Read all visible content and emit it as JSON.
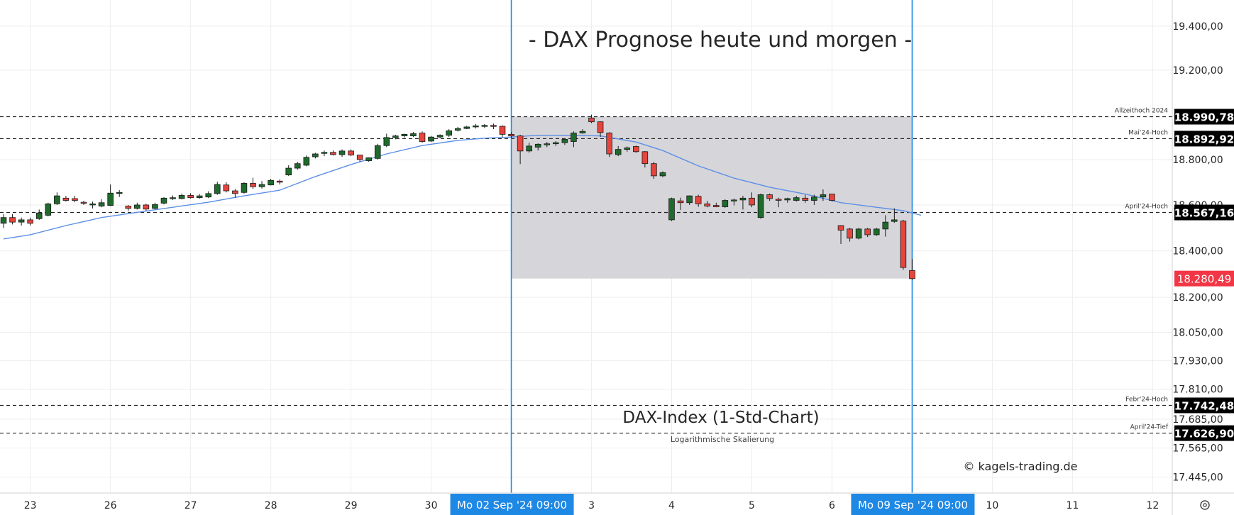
{
  "chart_data": {
    "type": "candlestick",
    "title": "- DAX Prognose heute und morgen -",
    "subtitle": "DAX-Index (1-Std-Chart)",
    "scale_note": "Logarithmische Skalierung",
    "copyright": "© kagels-trading.de",
    "y_scale": "log",
    "ylim": [
      17380,
      19520
    ],
    "y_ticks": [
      {
        "value": 19400,
        "label": "19.400,00"
      },
      {
        "value": 19200,
        "label": "19.200,00"
      },
      {
        "value": 18800,
        "label": "18.800,00"
      },
      {
        "value": 18600,
        "label": "18.600,00"
      },
      {
        "value": 18400,
        "label": "18.400,00"
      },
      {
        "value": 18200,
        "label": "18.200,00"
      },
      {
        "value": 18050,
        "label": "18.050,00"
      },
      {
        "value": 17930,
        "label": "17.930,00"
      },
      {
        "value": 17810,
        "label": "17.810,00"
      },
      {
        "value": 17685,
        "label": "17.685,00"
      },
      {
        "value": 17565,
        "label": "17.565,00"
      },
      {
        "value": 17445,
        "label": "17.445,00"
      }
    ],
    "x_ticks": [
      {
        "x": 0,
        "label": "23"
      },
      {
        "x": 9,
        "label": "26"
      },
      {
        "x": 18,
        "label": "27"
      },
      {
        "x": 27,
        "label": "28"
      },
      {
        "x": 36,
        "label": "29"
      },
      {
        "x": 45,
        "label": "30"
      },
      {
        "x": 63,
        "label": "3"
      },
      {
        "x": 72,
        "label": "4"
      },
      {
        "x": 81,
        "label": "5"
      },
      {
        "x": 90,
        "label": "6"
      },
      {
        "x": 108,
        "label": "10"
      },
      {
        "x": 117,
        "label": "11"
      },
      {
        "x": 126,
        "label": "12"
      }
    ],
    "x_range": [
      -3.4,
      128.2
    ],
    "levels": [
      {
        "value": 18990.78,
        "label": "18.990,78",
        "name": "Allzeithoch 2024"
      },
      {
        "value": 18892.92,
        "label": "18.892,92",
        "name": "Mai'24-Hoch"
      },
      {
        "value": 18567.16,
        "label": "18.567,16",
        "name": "April'24-Hoch"
      },
      {
        "value": 17742.48,
        "label": "17.742,48",
        "name": "Febr'24-Hoch"
      },
      {
        "value": 17626.9,
        "label": "17.626,90",
        "name": "April'24-Tief"
      }
    ],
    "last_price": {
      "value": 18280.49,
      "label": "18.280,49"
    },
    "range_box": {
      "x_start": 54,
      "x_end": 99,
      "high": 18990.78,
      "low": 18280.49
    },
    "vlines": [
      {
        "x": 54,
        "label": "Mo 02 Sep '24   09:00"
      },
      {
        "x": 99,
        "label": "Mo 09 Sep '24   09:00"
      }
    ],
    "colors": {
      "up": "#1e6b2b",
      "down": "#e5453d",
      "ma": "#5b8fe6",
      "vline": "#1e88e5",
      "box": "#d4d3d8",
      "label_bg": "#000000",
      "last_bg": "#f23645"
    },
    "candles": [
      {
        "x": -3,
        "o": 18520,
        "h": 18560,
        "l": 18500,
        "c": 18545
      },
      {
        "x": -2,
        "o": 18545,
        "h": 18560,
        "l": 18515,
        "c": 18525
      },
      {
        "x": -1,
        "o": 18525,
        "h": 18545,
        "l": 18510,
        "c": 18535
      },
      {
        "x": 0,
        "o": 18535,
        "h": 18545,
        "l": 18510,
        "c": 18520
      },
      {
        "x": 1,
        "o": 18540,
        "h": 18580,
        "l": 18535,
        "c": 18565
      },
      {
        "x": 2,
        "o": 18555,
        "h": 18610,
        "l": 18550,
        "c": 18605
      },
      {
        "x": 3,
        "o": 18605,
        "h": 18655,
        "l": 18600,
        "c": 18640
      },
      {
        "x": 4,
        "o": 18630,
        "h": 18640,
        "l": 18615,
        "c": 18620
      },
      {
        "x": 5,
        "o": 18628,
        "h": 18640,
        "l": 18612,
        "c": 18620
      },
      {
        "x": 6,
        "o": 18612,
        "h": 18618,
        "l": 18600,
        "c": 18608
      },
      {
        "x": 7,
        "o": 18600,
        "h": 18615,
        "l": 18585,
        "c": 18605
      },
      {
        "x": 8,
        "o": 18595,
        "h": 18625,
        "l": 18590,
        "c": 18610
      },
      {
        "x": 9,
        "o": 18598,
        "h": 18690,
        "l": 18595,
        "c": 18652
      },
      {
        "x": 10,
        "o": 18652,
        "h": 18665,
        "l": 18635,
        "c": 18655
      },
      {
        "x": 11,
        "o": 18595,
        "h": 18600,
        "l": 18575,
        "c": 18585
      },
      {
        "x": 12,
        "o": 18585,
        "h": 18610,
        "l": 18580,
        "c": 18600
      },
      {
        "x": 13,
        "o": 18600,
        "h": 18605,
        "l": 18575,
        "c": 18582
      },
      {
        "x": 14,
        "o": 18585,
        "h": 18610,
        "l": 18580,
        "c": 18602
      },
      {
        "x": 15,
        "o": 18608,
        "h": 18635,
        "l": 18603,
        "c": 18630
      },
      {
        "x": 16,
        "o": 18628,
        "h": 18642,
        "l": 18622,
        "c": 18632
      },
      {
        "x": 17,
        "o": 18628,
        "h": 18650,
        "l": 18625,
        "c": 18642
      },
      {
        "x": 18,
        "o": 18642,
        "h": 18652,
        "l": 18628,
        "c": 18632
      },
      {
        "x": 19,
        "o": 18632,
        "h": 18648,
        "l": 18628,
        "c": 18640
      },
      {
        "x": 20,
        "o": 18635,
        "h": 18660,
        "l": 18630,
        "c": 18650
      },
      {
        "x": 21,
        "o": 18650,
        "h": 18702,
        "l": 18645,
        "c": 18690
      },
      {
        "x": 22,
        "o": 18688,
        "h": 18700,
        "l": 18655,
        "c": 18662
      },
      {
        "x": 23,
        "o": 18662,
        "h": 18670,
        "l": 18632,
        "c": 18650
      },
      {
        "x": 24,
        "o": 18655,
        "h": 18700,
        "l": 18650,
        "c": 18695
      },
      {
        "x": 25,
        "o": 18695,
        "h": 18720,
        "l": 18670,
        "c": 18680
      },
      {
        "x": 26,
        "o": 18680,
        "h": 18705,
        "l": 18672,
        "c": 18690
      },
      {
        "x": 27,
        "o": 18688,
        "h": 18715,
        "l": 18686,
        "c": 18708
      },
      {
        "x": 28,
        "o": 18705,
        "h": 18712,
        "l": 18690,
        "c": 18700
      },
      {
        "x": 29,
        "o": 18732,
        "h": 18775,
        "l": 18728,
        "c": 18762
      },
      {
        "x": 30,
        "o": 18762,
        "h": 18790,
        "l": 18755,
        "c": 18782
      },
      {
        "x": 31,
        "o": 18775,
        "h": 18818,
        "l": 18770,
        "c": 18810
      },
      {
        "x": 32,
        "o": 18812,
        "h": 18830,
        "l": 18805,
        "c": 18825
      },
      {
        "x": 33,
        "o": 18828,
        "h": 18840,
        "l": 18815,
        "c": 18832
      },
      {
        "x": 34,
        "o": 18832,
        "h": 18840,
        "l": 18818,
        "c": 18822
      },
      {
        "x": 35,
        "o": 18822,
        "h": 18845,
        "l": 18812,
        "c": 18838
      },
      {
        "x": 36,
        "o": 18838,
        "h": 18845,
        "l": 18815,
        "c": 18820
      },
      {
        "x": 37,
        "o": 18820,
        "h": 18822,
        "l": 18790,
        "c": 18800
      },
      {
        "x": 38,
        "o": 18795,
        "h": 18810,
        "l": 18790,
        "c": 18808
      },
      {
        "x": 39,
        "o": 18805,
        "h": 18870,
        "l": 18800,
        "c": 18862
      },
      {
        "x": 40,
        "o": 18862,
        "h": 18915,
        "l": 18855,
        "c": 18898
      },
      {
        "x": 41,
        "o": 18898,
        "h": 18910,
        "l": 18890,
        "c": 18905
      },
      {
        "x": 42,
        "o": 18905,
        "h": 18915,
        "l": 18898,
        "c": 18912
      },
      {
        "x": 43,
        "o": 18905,
        "h": 18922,
        "l": 18900,
        "c": 18915
      },
      {
        "x": 44,
        "o": 18918,
        "h": 18925,
        "l": 18875,
        "c": 18880
      },
      {
        "x": 45,
        "o": 18882,
        "h": 18905,
        "l": 18878,
        "c": 18900
      },
      {
        "x": 46,
        "o": 18900,
        "h": 18912,
        "l": 18895,
        "c": 18908
      },
      {
        "x": 47,
        "o": 18908,
        "h": 18935,
        "l": 18900,
        "c": 18928
      },
      {
        "x": 48,
        "o": 18930,
        "h": 18945,
        "l": 18925,
        "c": 18938
      },
      {
        "x": 49,
        "o": 18938,
        "h": 18950,
        "l": 18935,
        "c": 18945
      },
      {
        "x": 50,
        "o": 18945,
        "h": 18958,
        "l": 18938,
        "c": 18950
      },
      {
        "x": 51,
        "o": 18950,
        "h": 18958,
        "l": 18940,
        "c": 18952
      },
      {
        "x": 52,
        "o": 18952,
        "h": 18960,
        "l": 18935,
        "c": 18948
      },
      {
        "x": 53,
        "o": 18948,
        "h": 18952,
        "l": 18900,
        "c": 18912
      },
      {
        "x": 54,
        "o": 18912,
        "h": 18922,
        "l": 18895,
        "c": 18905
      },
      {
        "x": 55,
        "o": 18905,
        "h": 18910,
        "l": 18780,
        "c": 18838
      },
      {
        "x": 56,
        "o": 18838,
        "h": 18875,
        "l": 18830,
        "c": 18860
      },
      {
        "x": 57,
        "o": 18855,
        "h": 18872,
        "l": 18840,
        "c": 18868
      },
      {
        "x": 58,
        "o": 18868,
        "h": 18878,
        "l": 18855,
        "c": 18870
      },
      {
        "x": 59,
        "o": 18870,
        "h": 18882,
        "l": 18860,
        "c": 18875
      },
      {
        "x": 60,
        "o": 18875,
        "h": 18895,
        "l": 18865,
        "c": 18890
      },
      {
        "x": 61,
        "o": 18880,
        "h": 18925,
        "l": 18855,
        "c": 18918
      },
      {
        "x": 62,
        "o": 18918,
        "h": 18935,
        "l": 18915,
        "c": 18925
      },
      {
        "x": 63,
        "o": 18985,
        "h": 19000,
        "l": 18962,
        "c": 18968
      },
      {
        "x": 64,
        "o": 18968,
        "h": 18970,
        "l": 18900,
        "c": 18920
      },
      {
        "x": 65,
        "o": 18918,
        "h": 18922,
        "l": 18812,
        "c": 18825
      },
      {
        "x": 66,
        "o": 18822,
        "h": 18860,
        "l": 18815,
        "c": 18845
      },
      {
        "x": 67,
        "o": 18845,
        "h": 18858,
        "l": 18835,
        "c": 18852
      },
      {
        "x": 68,
        "o": 18858,
        "h": 18862,
        "l": 18830,
        "c": 18835
      },
      {
        "x": 69,
        "o": 18835,
        "h": 18838,
        "l": 18765,
        "c": 18782
      },
      {
        "x": 70,
        "o": 18782,
        "h": 18790,
        "l": 18715,
        "c": 18728
      },
      {
        "x": 71,
        "o": 18728,
        "h": 18748,
        "l": 18722,
        "c": 18742
      },
      {
        "x": 72,
        "o": 18535,
        "h": 18632,
        "l": 18530,
        "c": 18628
      },
      {
        "x": 73,
        "o": 18618,
        "h": 18632,
        "l": 18578,
        "c": 18610
      },
      {
        "x": 74,
        "o": 18610,
        "h": 18642,
        "l": 18600,
        "c": 18640
      },
      {
        "x": 75,
        "o": 18638,
        "h": 18645,
        "l": 18592,
        "c": 18605
      },
      {
        "x": 76,
        "o": 18605,
        "h": 18618,
        "l": 18590,
        "c": 18595
      },
      {
        "x": 77,
        "o": 18598,
        "h": 18610,
        "l": 18590,
        "c": 18592
      },
      {
        "x": 78,
        "o": 18592,
        "h": 18625,
        "l": 18588,
        "c": 18620
      },
      {
        "x": 79,
        "o": 18618,
        "h": 18628,
        "l": 18598,
        "c": 18622
      },
      {
        "x": 80,
        "o": 18622,
        "h": 18640,
        "l": 18580,
        "c": 18630
      },
      {
        "x": 81,
        "o": 18630,
        "h": 18655,
        "l": 18590,
        "c": 18600
      },
      {
        "x": 82,
        "o": 18545,
        "h": 18650,
        "l": 18540,
        "c": 18645
      },
      {
        "x": 83,
        "o": 18645,
        "h": 18650,
        "l": 18618,
        "c": 18628
      },
      {
        "x": 84,
        "o": 18625,
        "h": 18632,
        "l": 18590,
        "c": 18622
      },
      {
        "x": 85,
        "o": 18622,
        "h": 18632,
        "l": 18610,
        "c": 18628
      },
      {
        "x": 86,
        "o": 18620,
        "h": 18640,
        "l": 18615,
        "c": 18632
      },
      {
        "x": 87,
        "o": 18630,
        "h": 18645,
        "l": 18610,
        "c": 18620
      },
      {
        "x": 88,
        "o": 18620,
        "h": 18645,
        "l": 18600,
        "c": 18635
      },
      {
        "x": 89,
        "o": 18635,
        "h": 18668,
        "l": 18618,
        "c": 18645
      },
      {
        "x": 90,
        "o": 18648,
        "h": 18650,
        "l": 18615,
        "c": 18620
      },
      {
        "x": 91,
        "o": 18510,
        "h": 18512,
        "l": 18430,
        "c": 18490
      },
      {
        "x": 92,
        "o": 18495,
        "h": 18500,
        "l": 18440,
        "c": 18455
      },
      {
        "x": 93,
        "o": 18455,
        "h": 18500,
        "l": 18450,
        "c": 18495
      },
      {
        "x": 94,
        "o": 18495,
        "h": 18500,
        "l": 18460,
        "c": 18470
      },
      {
        "x": 95,
        "o": 18470,
        "h": 18500,
        "l": 18465,
        "c": 18495
      },
      {
        "x": 96,
        "o": 18495,
        "h": 18555,
        "l": 18462,
        "c": 18525
      },
      {
        "x": 97,
        "o": 18528,
        "h": 18585,
        "l": 18522,
        "c": 18535
      },
      {
        "x": 98,
        "o": 18530,
        "h": 18535,
        "l": 18318,
        "c": 18328
      },
      {
        "x": 99,
        "o": 18315,
        "h": 18365,
        "l": 18275,
        "c": 18280
      }
    ],
    "moving_average": [
      {
        "x": -3,
        "y": 18452
      },
      {
        "x": 0,
        "y": 18470
      },
      {
        "x": 4,
        "y": 18510
      },
      {
        "x": 8,
        "y": 18545
      },
      {
        "x": 12,
        "y": 18568
      },
      {
        "x": 16,
        "y": 18590
      },
      {
        "x": 20,
        "y": 18612
      },
      {
        "x": 24,
        "y": 18640
      },
      {
        "x": 28,
        "y": 18665
      },
      {
        "x": 32,
        "y": 18725
      },
      {
        "x": 36,
        "y": 18778
      },
      {
        "x": 40,
        "y": 18825
      },
      {
        "x": 44,
        "y": 18862
      },
      {
        "x": 48,
        "y": 18885
      },
      {
        "x": 51,
        "y": 18895
      },
      {
        "x": 54,
        "y": 18900
      },
      {
        "x": 57,
        "y": 18908
      },
      {
        "x": 60,
        "y": 18908
      },
      {
        "x": 64,
        "y": 18905
      },
      {
        "x": 68,
        "y": 18878
      },
      {
        "x": 71,
        "y": 18840
      },
      {
        "x": 75,
        "y": 18772
      },
      {
        "x": 79,
        "y": 18718
      },
      {
        "x": 83,
        "y": 18678
      },
      {
        "x": 87,
        "y": 18648
      },
      {
        "x": 91,
        "y": 18610
      },
      {
        "x": 95,
        "y": 18590
      },
      {
        "x": 98,
        "y": 18575
      },
      {
        "x": 100,
        "y": 18555
      }
    ]
  }
}
